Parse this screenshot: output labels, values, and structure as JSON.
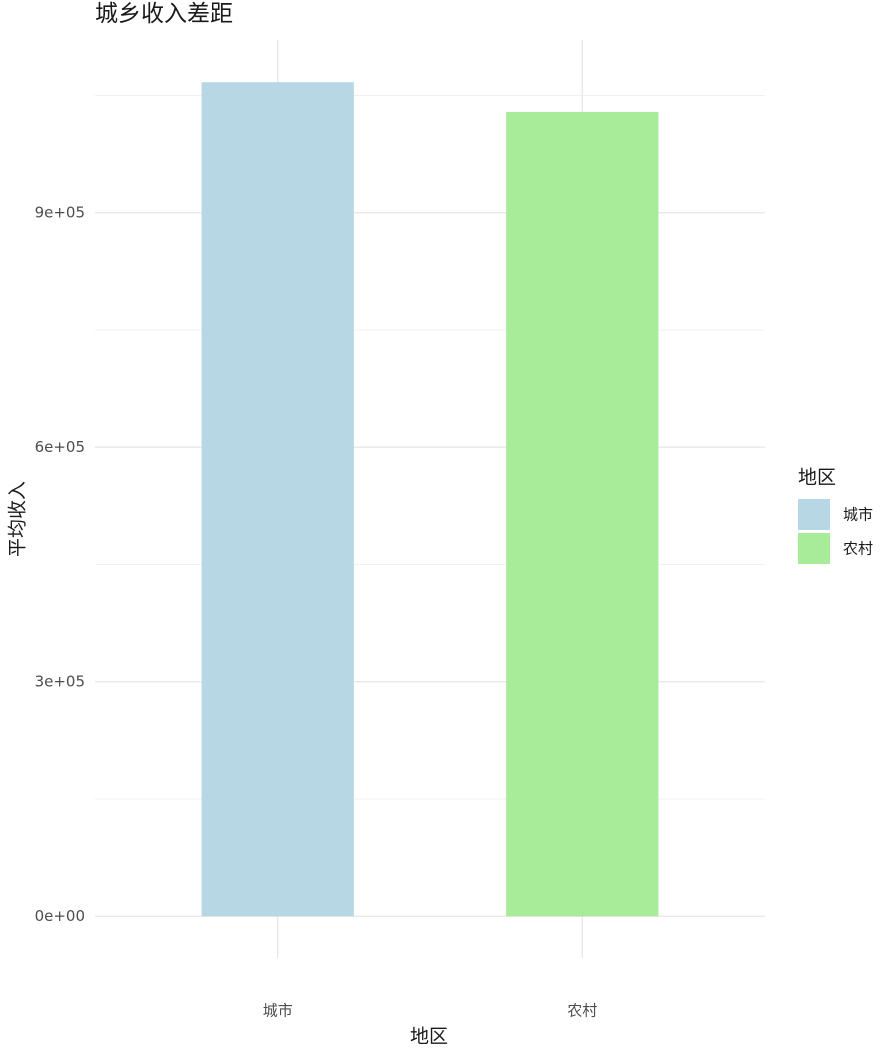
{
  "chart_data": {
    "type": "bar",
    "title": "城乡收入差距",
    "x_label": "地区",
    "y_label": "平均收入",
    "categories": [
      "城市",
      "农村"
    ],
    "values": [
      1067000,
      1029000
    ],
    "colors": [
      "#b7d7e4",
      "#a8eb98"
    ],
    "legend_title": "地区",
    "legend_position": "right",
    "ylim": [
      -53400,
      1121000
    ],
    "yticks": [
      {
        "value": 0,
        "label": "0e+00"
      },
      {
        "value": 300000,
        "label": "3e+05"
      },
      {
        "value": 600000,
        "label": "6e+05"
      },
      {
        "value": 900000,
        "label": "9e+05"
      }
    ],
    "yminor": [
      150000,
      450000,
      750000,
      1050000
    ],
    "grid": true
  }
}
